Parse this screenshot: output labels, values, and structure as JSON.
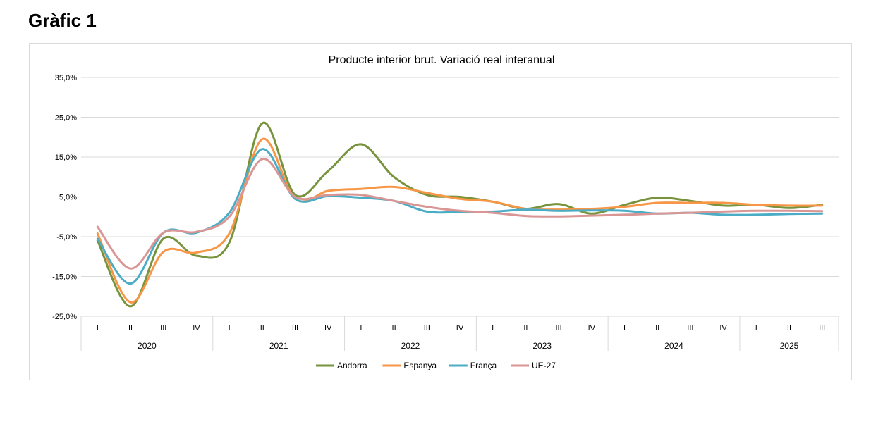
{
  "page": {
    "heading": "Gràfic 1"
  },
  "chart_data": {
    "type": "line",
    "title": "Producte interior brut. Variació real interanual",
    "xlabel": "",
    "ylabel": "",
    "ylim": [
      -25,
      35
    ],
    "yticks": [
      "35,0%",
      "25,0%",
      "15,0%",
      "5,0%",
      "-5,0%",
      "-15,0%",
      "-25,0%"
    ],
    "ytick_values": [
      35,
      25,
      15,
      5,
      -5,
      -15,
      -25
    ],
    "quarters": [
      "I",
      "II",
      "III",
      "IV",
      "I",
      "II",
      "III",
      "IV",
      "I",
      "II",
      "III",
      "IV",
      "I",
      "II",
      "III",
      "IV",
      "I",
      "II",
      "III",
      "IV",
      "I",
      "II",
      "III"
    ],
    "years": [
      {
        "label": "2020",
        "count": 4
      },
      {
        "label": "2021",
        "count": 4
      },
      {
        "label": "2022",
        "count": 4
      },
      {
        "label": "2023",
        "count": 4
      },
      {
        "label": "2024",
        "count": 4
      },
      {
        "label": "2025",
        "count": 3
      }
    ],
    "grid": true,
    "legend_position": "bottom",
    "series": [
      {
        "name": "Andorra",
        "color": "#77933c",
        "values": [
          -6,
          -22.5,
          -5.5,
          -9.8,
          -6.5,
          23.5,
          5.5,
          11.5,
          18.2,
          10,
          5.5,
          5,
          3.8,
          2,
          3.2,
          0.8,
          3,
          4.8,
          4,
          2.8,
          3,
          2.2,
          3
        ]
      },
      {
        "name": "Espanya",
        "color": "#f79646",
        "values": [
          -4.2,
          -21.5,
          -8.8,
          -9,
          -4.2,
          19.5,
          4.5,
          6.5,
          7,
          7.5,
          6,
          4.5,
          3.8,
          2,
          1.8,
          2,
          2.5,
          3.5,
          3.5,
          3.5,
          3,
          2.8,
          2.8
        ]
      },
      {
        "name": "França",
        "color": "#4bacc6",
        "values": [
          -5.5,
          -16.8,
          -4,
          -4,
          1,
          17,
          4.5,
          5.2,
          4.8,
          4,
          1.3,
          1.2,
          1.3,
          1.8,
          1.5,
          1.6,
          1.5,
          0.8,
          1,
          0.5,
          0.5,
          0.7,
          0.8
        ]
      },
      {
        "name": "UE-27",
        "color": "#d99694",
        "values": [
          -2.5,
          -13,
          -4,
          -3.8,
          0,
          14.5,
          5,
          5.5,
          5.5,
          4,
          2.5,
          1.5,
          1,
          0.2,
          0.1,
          0.3,
          0.5,
          0.8,
          1,
          1.3,
          1.5,
          1.5,
          1.4
        ]
      }
    ]
  }
}
